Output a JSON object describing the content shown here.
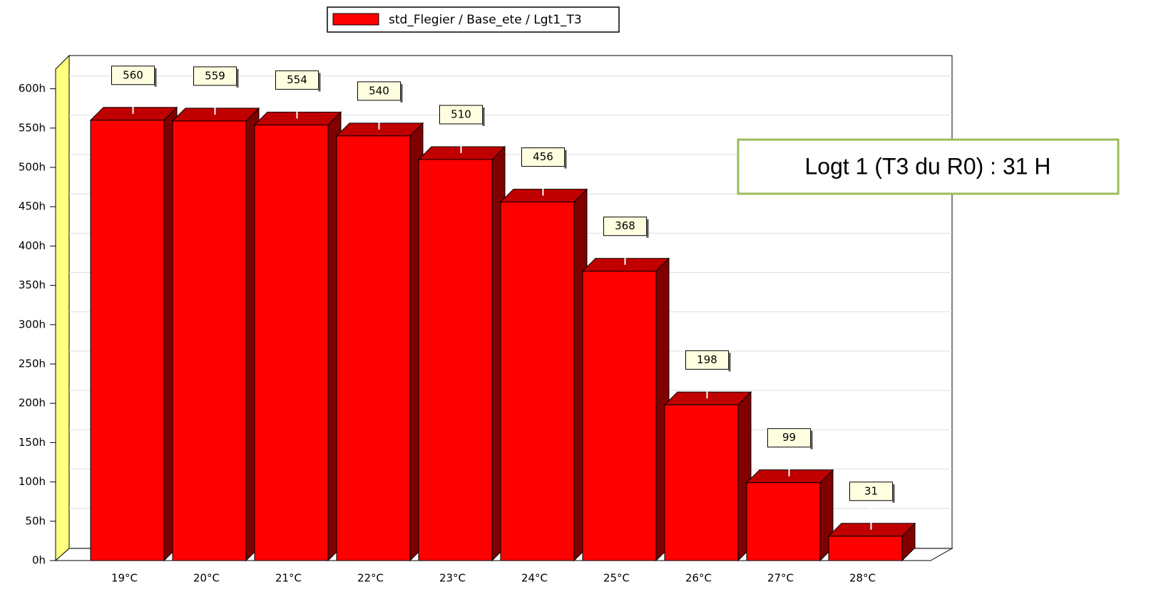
{
  "chart_data": {
    "type": "bar",
    "legend": "std_Flegier  / Base_ete / Lgt1_T3",
    "annotation": "Logt 1 (T3 du R0) : 31 H",
    "categories": [
      "19°C",
      "20°C",
      "21°C",
      "22°C",
      "23°C",
      "24°C",
      "25°C",
      "26°C",
      "27°C",
      "28°C"
    ],
    "values": [
      560,
      559,
      554,
      540,
      510,
      456,
      368,
      198,
      99,
      31
    ],
    "color": "#ff0000",
    "ylim": [
      0,
      625
    ],
    "yticks": [
      {
        "value": 0,
        "label": "0h"
      },
      {
        "value": 50,
        "label": "50h"
      },
      {
        "value": 100,
        "label": "100h"
      },
      {
        "value": 150,
        "label": "150h"
      },
      {
        "value": 200,
        "label": "200h"
      },
      {
        "value": 250,
        "label": "250h"
      },
      {
        "value": 300,
        "label": "300h"
      },
      {
        "value": 350,
        "label": "350h"
      },
      {
        "value": 400,
        "label": "400h"
      },
      {
        "value": 450,
        "label": "450h"
      },
      {
        "value": 500,
        "label": "500h"
      },
      {
        "value": 550,
        "label": "550h"
      },
      {
        "value": 600,
        "label": "600h"
      }
    ],
    "grid": true
  }
}
